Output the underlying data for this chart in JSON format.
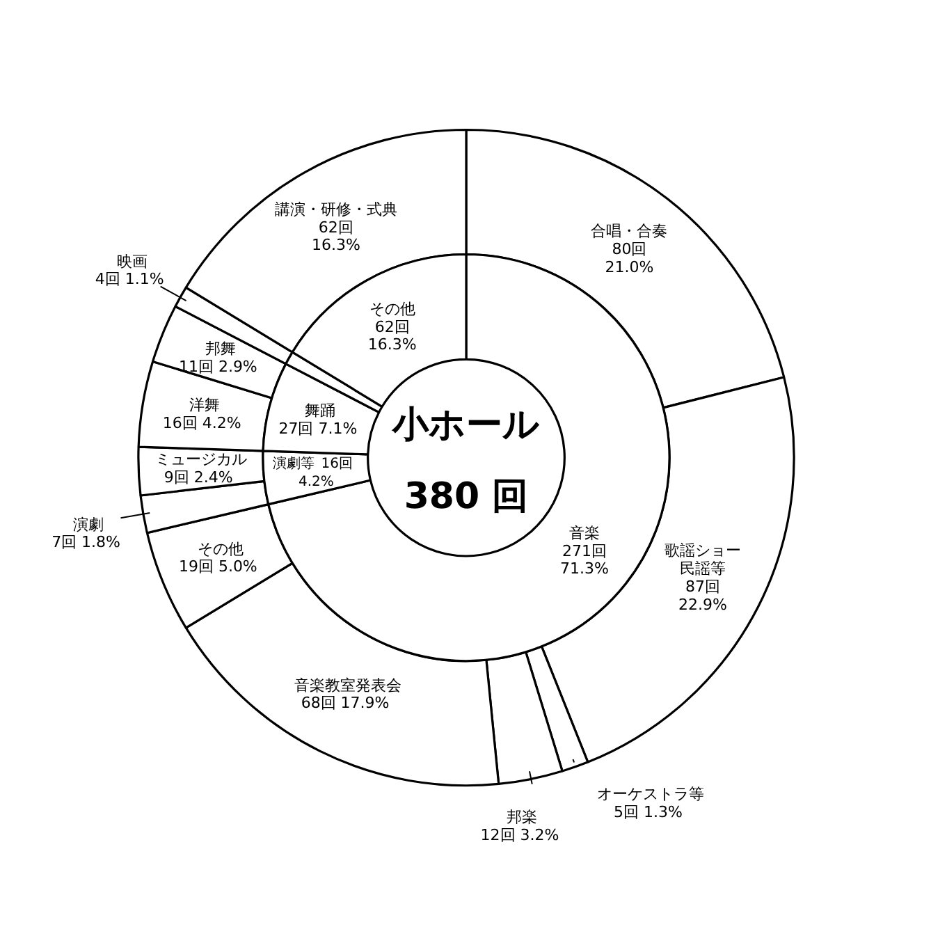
{
  "chart_data": [
    {
      "type": "donut",
      "title": "小ホール",
      "annotations": [
        "380 回"
      ],
      "categories": [
        "音楽",
        "演劇等",
        "舞踊",
        null,
        "その他"
      ],
      "values": [
        271,
        16,
        27,
        4,
        62
      ],
      "colors": [
        "#ffffff",
        "#ffffff",
        "#ffffff",
        "#ffffff",
        "#ffffff"
      ],
      "value_labels": [
        "271回\n71.3%",
        "16回\n4.2%",
        "27回  7.1%",
        null,
        "62回\n16.3%"
      ]
    },
    {
      "type": "donut",
      "categories": [
        "合唱・合奏",
        "歌謡ショー民謡等",
        "オーケストラ等",
        "邦楽",
        "音楽教室発表会",
        "その他",
        "演劇",
        "ミュージカル",
        "洋舞",
        "邦舞",
        "映画",
        "講演・研修・式典"
      ],
      "values": [
        80,
        87,
        5,
        12,
        68,
        19,
        7,
        9,
        16,
        11,
        4,
        62
      ],
      "colors": [
        "#ffffff",
        "#ffffff",
        "#ffffff",
        "#ffffff",
        "#ffffff",
        "#ffffff",
        "#ffffff",
        "#ffffff",
        "#ffffff",
        "#ffffff",
        "#ffffff",
        "#ffffff"
      ],
      "value_labels": [
        "80回\n21.0%",
        "87回\n22.9%",
        "5回  1.3%",
        "12回  3.2%",
        "68回  17.9%",
        "19回  5.0%",
        "7回  1.8%",
        "9回  2.4%",
        "16回  4.2%",
        "11回  2.9%",
        "4回  1.1%",
        "62回\n16.3%"
      ]
    }
  ]
}
